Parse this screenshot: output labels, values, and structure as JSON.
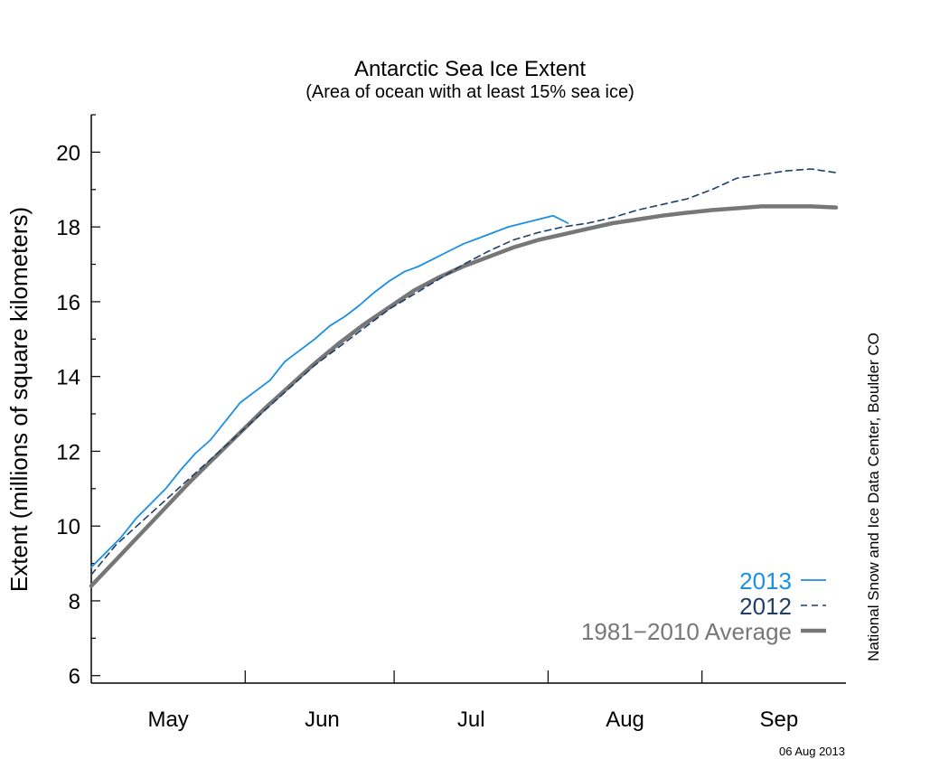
{
  "chart_data": {
    "type": "line",
    "title": "Antarctic Sea Ice Extent",
    "subtitle": "(Area of ocean with at least 15% sea ice)",
    "ylabel": "Extent (millions of square kilometers)",
    "xlabel": "",
    "ylim": [
      5.8,
      21
    ],
    "yticks": [
      6,
      8,
      10,
      12,
      14,
      16,
      18,
      20
    ],
    "xlim": [
      0,
      152
    ],
    "x_unit": "days since May 1",
    "month_labels": [
      "May",
      "Jun",
      "Jul",
      "Aug",
      "Sep"
    ],
    "month_centers": [
      15.5,
      46.5,
      76.5,
      107.5,
      138.5
    ],
    "month_boundaries": [
      31,
      61,
      92,
      123
    ],
    "grid": false,
    "legend_position": "bottom-right",
    "credit": "National Snow and Ice Data Center, Boulder CO",
    "date_stamp": "06 Aug 2013",
    "series": [
      {
        "name": "2013",
        "color": "#1a8fe3",
        "style": "solid",
        "x": [
          0,
          3,
          6,
          9,
          12,
          15,
          18,
          21,
          24,
          27,
          30,
          33,
          36,
          39,
          42,
          45,
          48,
          51,
          54,
          57,
          60,
          63,
          66,
          69,
          72,
          75,
          78,
          81,
          84,
          87,
          90,
          93,
          96
        ],
        "y": [
          8.9,
          9.3,
          9.7,
          10.2,
          10.6,
          11.0,
          11.5,
          11.95,
          12.3,
          12.8,
          13.3,
          13.6,
          13.9,
          14.4,
          14.7,
          15.0,
          15.35,
          15.6,
          15.9,
          16.25,
          16.55,
          16.8,
          16.95,
          17.15,
          17.35,
          17.55,
          17.7,
          17.85,
          18.0,
          18.1,
          18.2,
          18.3,
          18.1
        ]
      },
      {
        "name": "2012",
        "color": "#1e3f66",
        "style": "dashed",
        "x": [
          0,
          5,
          10,
          15,
          20,
          25,
          30,
          35,
          40,
          45,
          50,
          55,
          60,
          65,
          70,
          75,
          80,
          85,
          90,
          95,
          100,
          105,
          110,
          115,
          120,
          125,
          130,
          135,
          140,
          145,
          150
        ],
        "y": [
          8.7,
          9.5,
          10.1,
          10.7,
          11.3,
          11.9,
          12.5,
          13.1,
          13.7,
          14.3,
          14.8,
          15.3,
          15.8,
          16.2,
          16.6,
          17.0,
          17.35,
          17.65,
          17.85,
          18.0,
          18.1,
          18.25,
          18.45,
          18.6,
          18.75,
          19.0,
          19.3,
          19.4,
          19.5,
          19.55,
          19.45
        ]
      },
      {
        "name": "1981−2010 Average",
        "color": "#777777",
        "style": "solid-thick",
        "x": [
          0,
          5,
          10,
          15,
          20,
          25,
          30,
          35,
          40,
          45,
          50,
          55,
          60,
          65,
          70,
          75,
          80,
          85,
          90,
          95,
          100,
          105,
          110,
          115,
          120,
          125,
          130,
          135,
          140,
          145,
          150
        ],
        "y": [
          8.4,
          9.1,
          9.8,
          10.5,
          11.2,
          11.85,
          12.5,
          13.15,
          13.75,
          14.35,
          14.9,
          15.4,
          15.85,
          16.3,
          16.65,
          16.95,
          17.2,
          17.45,
          17.65,
          17.8,
          17.95,
          18.1,
          18.2,
          18.3,
          18.38,
          18.45,
          18.5,
          18.55,
          18.55,
          18.55,
          18.52
        ]
      }
    ]
  }
}
